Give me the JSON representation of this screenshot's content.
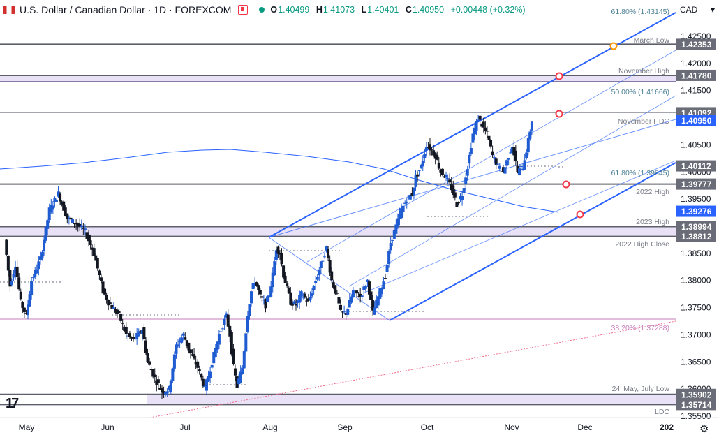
{
  "header": {
    "title": "U.S. Dollar / Canadian Dollar · 1D · FOREXCOM",
    "ohlc": [
      {
        "k": "O",
        "v": "1.40499"
      },
      {
        "k": "H",
        "v": "1.41073"
      },
      {
        "k": "L",
        "v": "1.40401"
      },
      {
        "k": "C",
        "v": "1.40950"
      },
      {
        "k": "",
        "v": "+0.00448 (+0.32%)"
      }
    ],
    "currency": "CAD",
    "currency_caret": "▾"
  },
  "colors": {
    "up": "#1f5bd1",
    "down": "#131722",
    "channel": "#2962ff",
    "level": "#787b86",
    "pink": "#c77dba",
    "red": "#f23645",
    "orange": "#ff9800",
    "band": "#e9e1f6",
    "band_edge": "#4b3d7a",
    "sma": "#2962ff"
  },
  "chart_data": {
    "type": "candlestick",
    "symbol": "USD/CAD",
    "timeframe": "1D",
    "ylim": [
      1.355,
      1.433
    ],
    "y_ticks": [
      "1.42500",
      "1.42000",
      "1.41500",
      "1.40500",
      "1.40000",
      "1.39500",
      "1.38500",
      "1.38000",
      "1.37500",
      "1.37000",
      "1.36500",
      "1.36000",
      "1.35500"
    ],
    "x_ticks": [
      "May",
      "Jun",
      "Jul",
      "Aug",
      "Sep",
      "Oct",
      "Nov",
      "Dec",
      "202"
    ],
    "badges": [
      {
        "label": "1.42353",
        "price": 1.42353,
        "style": "grey"
      },
      {
        "label": "1.41780",
        "price": 1.4178,
        "style": "grey"
      },
      {
        "label": "1.41092",
        "price": 1.41092,
        "style": "grey"
      },
      {
        "label": "1.40950",
        "price": 1.4095,
        "style": "blue"
      },
      {
        "label": "1.40112",
        "price": 1.40112,
        "style": "grey"
      },
      {
        "label": "1.39777",
        "price": 1.39777,
        "style": "grey"
      },
      {
        "label": "1.39276",
        "price": 1.39276,
        "style": "blue"
      },
      {
        "label": "1.38994",
        "price": 1.38994,
        "style": "grey"
      },
      {
        "label": "1.38812",
        "price": 1.38812,
        "style": "grey"
      },
      {
        "label": "1.35902",
        "price": 1.35902,
        "style": "grey"
      },
      {
        "label": "1.35714",
        "price": 1.35714,
        "style": "grey"
      }
    ],
    "levels": [
      {
        "label": "61.80% (1.43145)",
        "price": 1.43145,
        "style": "fib"
      },
      {
        "label": "March Low",
        "price": 1.42353,
        "style": "solid"
      },
      {
        "label": "November High",
        "price": 1.4178,
        "style": "solid"
      },
      {
        "label": "50.00% (1.41666)",
        "price": 1.41666,
        "style": "fib"
      },
      {
        "label": "November HDC",
        "price": 1.41092,
        "style": "thin"
      },
      {
        "label": "61.80% (1.39845)",
        "price": 1.39845,
        "style": "fib"
      },
      {
        "label": "2022 High",
        "price": 1.39777,
        "style": "solid"
      },
      {
        "label": "2023 High",
        "price": 1.38994,
        "style": "solid"
      },
      {
        "label": "2022 High Close",
        "price": 1.38812,
        "style": "solid"
      },
      {
        "label": "38.20% (1.37288)",
        "price": 1.37288,
        "style": "pink"
      },
      {
        "label": "24' May, July Low",
        "price": 1.35902,
        "style": "solid"
      },
      {
        "label": "LDC",
        "price": 1.35714,
        "style": "solid"
      }
    ],
    "series": [
      {
        "name": "USD/CAD daily",
        "description": "Daily candles, mid-April 2024 to Nov 20 2024, rising from ~1.355 (July low) to 1.4107 (Nov high)."
      }
    ]
  }
}
